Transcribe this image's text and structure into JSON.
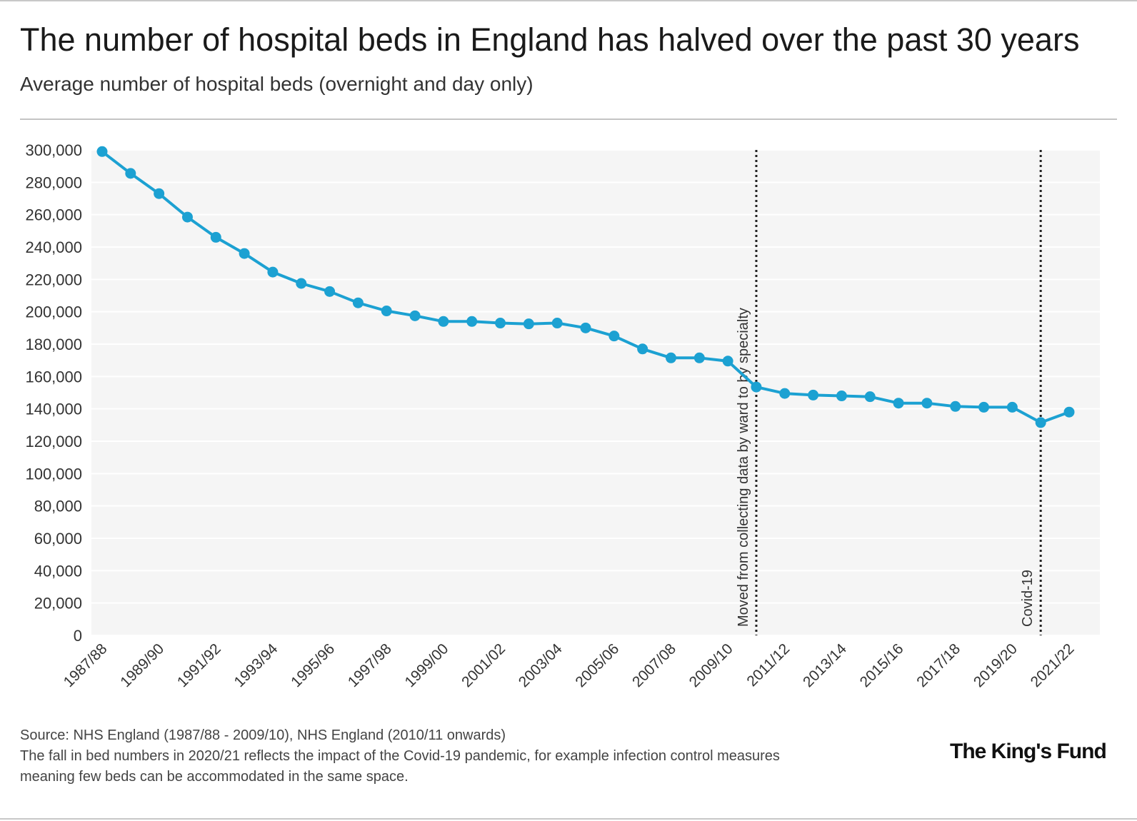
{
  "title": "The number of hospital beds in England has halved over the past 30 years",
  "subtitle": "Average number of hospital beds (overnight and day only)",
  "footer": {
    "source": "Source: NHS England (1987/88 - 2009/10), NHS England (2010/11 onwards)",
    "note_line1": "The fall in bed numbers in 2020/21 reflects the impact of the Covid-19 pandemic, for example infection control measures",
    "note_line2": "meaning few beds can be accommodated in the same space."
  },
  "logo_text": "The King's Fund",
  "colors": {
    "line": "#1ca1d2",
    "plot_bg": "#f5f5f5",
    "gridline": "#ffffff",
    "text": "#222222"
  },
  "chart_data": {
    "type": "line",
    "x": [
      "1987/88",
      "1988/89",
      "1989/90",
      "1990/91",
      "1991/92",
      "1992/93",
      "1993/94",
      "1994/95",
      "1995/96",
      "1996/97",
      "1997/98",
      "1998/99",
      "1999/00",
      "2000/01",
      "2001/02",
      "2002/03",
      "2003/04",
      "2004/05",
      "2005/06",
      "2006/07",
      "2007/08",
      "2008/09",
      "2009/10",
      "2010/11",
      "2011/12",
      "2012/13",
      "2013/14",
      "2014/15",
      "2015/16",
      "2016/17",
      "2017/18",
      "2018/19",
      "2019/20",
      "2020/21",
      "2021/22"
    ],
    "series": [
      {
        "values": [
          299000,
          285500,
          273000,
          258500,
          246000,
          236000,
          224500,
          217500,
          212500,
          205500,
          200500,
          197500,
          194000,
          194000,
          193000,
          192500,
          193000,
          190000,
          185000,
          177000,
          171500,
          171500,
          169500,
          153500,
          149500,
          148500,
          148000,
          147500,
          143500,
          143500,
          141500,
          141000,
          141000,
          131500,
          138000
        ]
      }
    ],
    "x_tick_labels": [
      "1987/88",
      "1989/90",
      "1991/92",
      "1993/94",
      "1995/96",
      "1997/98",
      "1999/00",
      "2001/02",
      "2003/04",
      "2005/06",
      "2007/08",
      "2009/10",
      "2011/12",
      "2013/14",
      "2015/16",
      "2017/18",
      "2019/20",
      "2021/22"
    ],
    "y_ticks": [
      0,
      20000,
      40000,
      60000,
      80000,
      100000,
      120000,
      140000,
      160000,
      180000,
      200000,
      220000,
      240000,
      260000,
      280000,
      300000
    ],
    "y_tick_labels": [
      "0",
      "20,000",
      "40,000",
      "60,000",
      "80,000",
      "100,000",
      "120,000",
      "140,000",
      "160,000",
      "180,000",
      "200,000",
      "220,000",
      "240,000",
      "260,000",
      "280,000",
      "300,000"
    ],
    "ylim": [
      0,
      300000
    ],
    "xlabel": "",
    "ylabel": "",
    "grid": true,
    "annotations": [
      {
        "at_index": 23,
        "label": "Moved from collecting data by ward to by specialty"
      },
      {
        "at_index": 33,
        "label": "Covid-19"
      }
    ]
  }
}
